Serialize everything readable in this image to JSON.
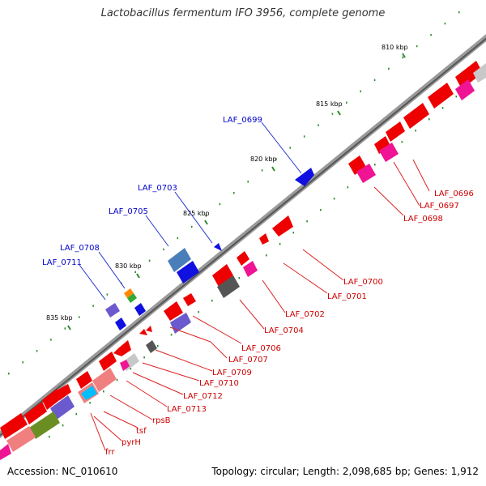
{
  "title": "Lactobacillus fermentum IFO 3956, complete genome",
  "footer": {
    "accession": "Accession: NC_010610",
    "summary": "Topology: circular; Length: 2,098,685 bp; Genes: 1,912"
  },
  "colors": {
    "backbone": "#7a7a7a",
    "tick": "#1f8a1f",
    "label_top": "#0000cc",
    "label_bottom": "#cc0000"
  },
  "scale_labels": [
    "810 kbp",
    "815 kbp",
    "820 kbp",
    "825 kbp",
    "830 kbp",
    "835 kbp"
  ],
  "labels_top": [
    "LAF_0699",
    "LAF_0703",
    "LAF_0705",
    "LAF_0708",
    "LAF_0711"
  ],
  "labels_bottom": [
    "LAF_0696",
    "LAF_0697",
    "LAF_0698",
    "LAF_0700",
    "LAF_0701",
    "LAF_0702",
    "LAF_0704",
    "LAF_0706",
    "LAF_0707",
    "LAF_0709",
    "LAF_0710",
    "LAF_0712",
    "LAF_0713",
    "rpsB",
    "tsf",
    "pyrH",
    "frr"
  ]
}
